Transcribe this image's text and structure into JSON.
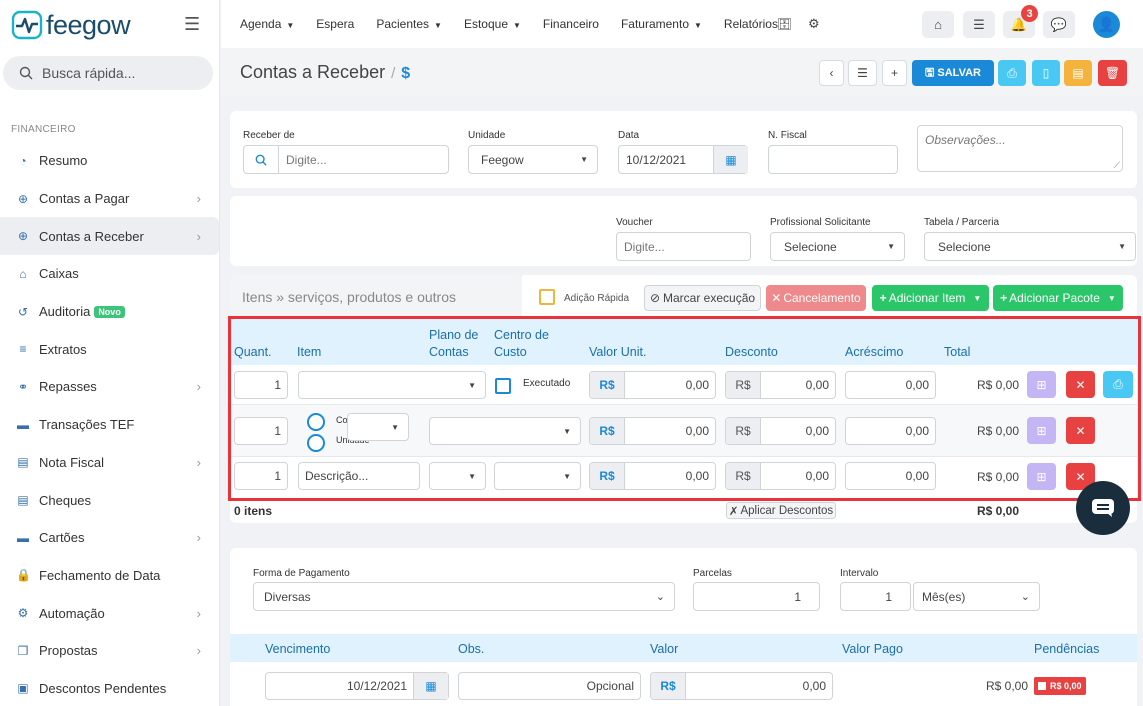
{
  "brand": {
    "logo_text": "feegow"
  },
  "search": {
    "placeholder": "Busca rápida..."
  },
  "sidebar": {
    "section": "FINANCEIRO",
    "items": [
      {
        "label": "Resumo",
        "icon": "chart-icon",
        "chev": false
      },
      {
        "label": "Contas a Pagar",
        "icon": "arrow-up-circle-icon",
        "chev": true
      },
      {
        "label": "Contas a Receber",
        "icon": "arrow-down-circle-icon",
        "chev": true,
        "active": true
      },
      {
        "label": "Caixas",
        "icon": "inbox-icon",
        "chev": false
      },
      {
        "label": "Auditoria",
        "icon": "history-icon",
        "chev": false,
        "badge": "Novo"
      },
      {
        "label": "Extratos",
        "icon": "list-icon",
        "chev": false
      },
      {
        "label": "Repasses",
        "icon": "handshake-icon",
        "chev": true
      },
      {
        "label": "Transações TEF",
        "icon": "card-icon",
        "chev": false
      },
      {
        "label": "Nota Fiscal",
        "icon": "document-icon",
        "chev": true
      },
      {
        "label": "Cheques",
        "icon": "cheque-icon",
        "chev": false
      },
      {
        "label": "Cartões",
        "icon": "credit-card-icon",
        "chev": true
      },
      {
        "label": "Fechamento de Data",
        "icon": "lock-icon",
        "chev": false
      },
      {
        "label": "Automação",
        "icon": "gears-icon",
        "chev": true
      },
      {
        "label": "Propostas",
        "icon": "copy-icon",
        "chev": true
      },
      {
        "label": "Descontos Pendentes",
        "icon": "money-icon",
        "chev": false
      }
    ]
  },
  "topnav": {
    "items": [
      {
        "label": "Agenda",
        "caret": true
      },
      {
        "label": "Espera",
        "caret": false
      },
      {
        "label": "Pacientes",
        "caret": true
      },
      {
        "label": "Estoque",
        "caret": true
      },
      {
        "label": "Financeiro",
        "caret": false
      },
      {
        "label": "Faturamento",
        "caret": true
      },
      {
        "label": "Relatórios",
        "caret": false
      }
    ],
    "notifications": "3"
  },
  "page": {
    "title": "Contas a Receber",
    "title_icon": "$",
    "save_label": "SALVAR"
  },
  "form": {
    "receber_de": {
      "label": "Receber de",
      "placeholder": "Digite..."
    },
    "unidade": {
      "label": "Unidade",
      "value": "Feegow"
    },
    "data": {
      "label": "Data",
      "value": "10/12/2021"
    },
    "nfiscal": {
      "label": "N. Fiscal",
      "value": ""
    },
    "observacoes": {
      "placeholder": "Observações..."
    },
    "voucher": {
      "label": "Voucher",
      "placeholder": "Digite..."
    },
    "profissional": {
      "label": "Profissional Solicitante",
      "value": "Selecione"
    },
    "tabela": {
      "label": "Tabela / Parceria",
      "value": "Selecione"
    }
  },
  "items": {
    "title": "Itens » serviços, produtos e outros",
    "adicao_rapida": "Adição Rápida",
    "marcar_execucao": "Marcar execução",
    "cancelamento": "Cancelamento",
    "adicionar_item": "Adicionar Item",
    "adicionar_pacote": "Adicionar Pacote",
    "headers": {
      "quant": "Quant.",
      "item": "Item",
      "plano_1": "Plano de",
      "plano_2": "Contas",
      "centro_1": "Centro de",
      "centro_2": "Custo",
      "valor": "Valor Unit.",
      "desconto": "Desconto",
      "acrescimo": "Acréscimo",
      "total": "Total"
    },
    "rows": [
      {
        "quant": "1",
        "executado": "Executado",
        "currency": "R$",
        "valor": "0,00",
        "desc_currency": "R$",
        "desconto": "0,00",
        "acrescimo": "0,00",
        "total": "R$ 0,00"
      },
      {
        "quant": "1",
        "radio_1": "Co",
        "radio_2": "Unidade",
        "currency": "R$",
        "valor": "0,00",
        "desc_currency": "R$",
        "desconto": "0,00",
        "acrescimo": "0,00",
        "total": "R$ 0,00"
      },
      {
        "quant": "1",
        "desc_placeholder": "Descrição...",
        "currency": "R$",
        "valor": "0,00",
        "desc_currency": "R$",
        "desconto": "0,00",
        "acrescimo": "0,00",
        "total": "R$ 0,00"
      }
    ],
    "footer": {
      "count": "0 itens",
      "aplicar": "Aplicar Descontos",
      "total": "R$ 0,00"
    }
  },
  "payment": {
    "forma_label": "Forma de Pagamento",
    "forma_value": "Diversas",
    "parcelas_label": "Parcelas",
    "parcelas_value": "1",
    "intervalo_label": "Intervalo",
    "intervalo_value": "1",
    "intervalo_unit": "Mês(es)",
    "headers": {
      "vencimento": "Vencimento",
      "obs": "Obs.",
      "valor": "Valor",
      "valor_pago": "Valor Pago",
      "pendencias": "Pendências"
    },
    "row": {
      "vencimento": "10/12/2021",
      "obs_placeholder": "Opcional",
      "currency": "R$",
      "valor": "0,00",
      "valor_pago": "R$ 0,00",
      "pendencia": "R$ 0,00"
    }
  },
  "colors": {
    "primary": "#1a8ad8",
    "success": "#2cc66a",
    "danger": "#e84142",
    "highlight": "#e8333a"
  }
}
